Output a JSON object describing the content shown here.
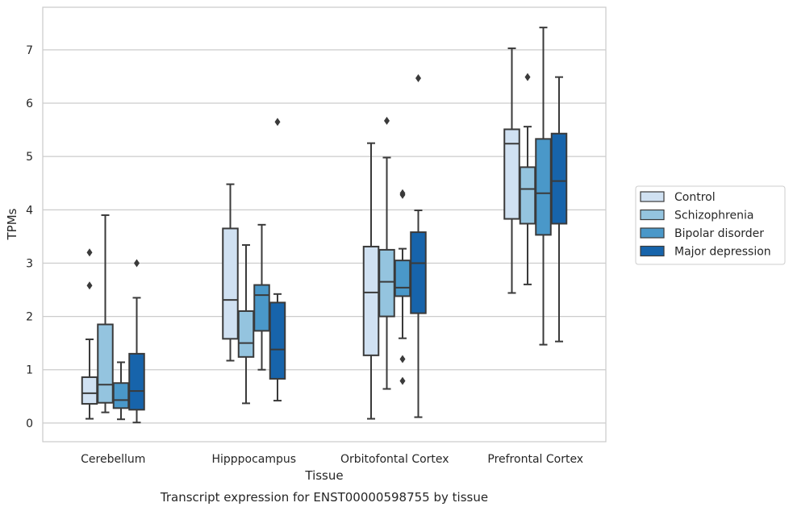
{
  "chart_data": {
    "type": "box",
    "caption": "Transcript expression for ENST00000598755 by tissue",
    "xlabel": "Tissue",
    "ylabel": "TPMs",
    "ylim": [
      -0.35,
      7.8
    ],
    "yticks": [
      0,
      1,
      2,
      3,
      4,
      5,
      6,
      7
    ],
    "grid": "horizontal",
    "legend_position": "right",
    "categories": [
      "Cerebellum",
      "Hipppocampus",
      "Orbitofontal Cortex",
      "Prefrontal Cortex"
    ],
    "series": [
      {
        "name": "Control",
        "color": "#d0e1f2",
        "boxes": [
          {
            "whisker_low": 0.08,
            "q1": 0.36,
            "median": 0.56,
            "q3": 0.86,
            "whisker_high": 1.57,
            "outliers": [
              2.58,
              3.2
            ]
          },
          {
            "whisker_low": 1.17,
            "q1": 1.58,
            "median": 2.31,
            "q3": 3.65,
            "whisker_high": 4.48,
            "outliers": []
          },
          {
            "whisker_low": 0.08,
            "q1": 1.27,
            "median": 2.45,
            "q3": 3.31,
            "whisker_high": 5.25,
            "outliers": []
          },
          {
            "whisker_low": 2.44,
            "q1": 3.83,
            "median": 5.24,
            "q3": 5.51,
            "whisker_high": 7.03,
            "outliers": []
          }
        ]
      },
      {
        "name": "Schizophrenia",
        "color": "#94c4df",
        "boxes": [
          {
            "whisker_low": 0.2,
            "q1": 0.38,
            "median": 0.72,
            "q3": 1.85,
            "whisker_high": 3.9,
            "outliers": []
          },
          {
            "whisker_low": 0.37,
            "q1": 1.24,
            "median": 1.5,
            "q3": 2.1,
            "whisker_high": 3.34,
            "outliers": []
          },
          {
            "whisker_low": 0.64,
            "q1": 2.0,
            "median": 2.65,
            "q3": 3.25,
            "whisker_high": 4.98,
            "outliers": [
              5.67
            ]
          },
          {
            "whisker_low": 2.6,
            "q1": 3.74,
            "median": 4.39,
            "q3": 4.8,
            "whisker_high": 5.56,
            "outliers": [
              6.49
            ]
          }
        ]
      },
      {
        "name": "Bipolar disorder",
        "color": "#4a98c9",
        "boxes": [
          {
            "whisker_low": 0.07,
            "q1": 0.28,
            "median": 0.43,
            "q3": 0.75,
            "whisker_high": 1.14,
            "outliers": []
          },
          {
            "whisker_low": 1.0,
            "q1": 1.73,
            "median": 2.4,
            "q3": 2.59,
            "whisker_high": 3.72,
            "outliers": []
          },
          {
            "whisker_low": 1.59,
            "q1": 2.38,
            "median": 2.54,
            "q3": 3.05,
            "whisker_high": 3.27,
            "outliers": [
              0.79,
              1.2,
              4.28,
              4.31
            ]
          },
          {
            "whisker_low": 1.47,
            "q1": 3.53,
            "median": 4.31,
            "q3": 5.33,
            "whisker_high": 7.42,
            "outliers": []
          }
        ]
      },
      {
        "name": "Major depression",
        "color": "#1764ab",
        "boxes": [
          {
            "whisker_low": 0.01,
            "q1": 0.25,
            "median": 0.6,
            "q3": 1.3,
            "whisker_high": 2.35,
            "outliers": [
              3.0
            ]
          },
          {
            "whisker_low": 0.42,
            "q1": 0.83,
            "median": 1.38,
            "q3": 2.26,
            "whisker_high": 2.42,
            "outliers": [
              5.65
            ]
          },
          {
            "whisker_low": 0.11,
            "q1": 2.06,
            "median": 3.0,
            "q3": 3.58,
            "whisker_high": 3.99,
            "outliers": [
              6.47
            ]
          },
          {
            "whisker_low": 1.53,
            "q1": 3.74,
            "median": 4.54,
            "q3": 5.43,
            "whisker_high": 6.49,
            "outliers": []
          }
        ]
      }
    ]
  }
}
